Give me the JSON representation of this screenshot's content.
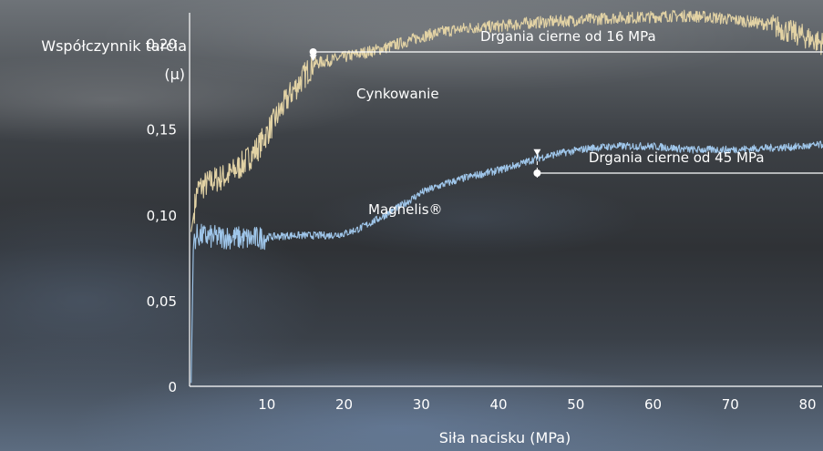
{
  "chart_data": {
    "type": "line",
    "xlabel": "Siła nacisku (MPa)",
    "ylabel_lines": [
      "Współczynnik tarcia",
      "(µ)"
    ],
    "xlim": [
      0,
      82
    ],
    "ylim": [
      0,
      0.22
    ],
    "xticks": [
      10,
      20,
      30,
      40,
      50,
      60,
      70,
      80
    ],
    "yticks": [
      0,
      0.05,
      0.1,
      0.15,
      0.2
    ],
    "ytick_labels": [
      "0",
      "0,05",
      "0,10",
      "0,15",
      "0,20"
    ],
    "series": [
      {
        "name": "Cynkowanie",
        "color": "#e2d2a4",
        "x": [
          0.2,
          1,
          3,
          5,
          7,
          9,
          11,
          13,
          15,
          16,
          18,
          20,
          22,
          25,
          28,
          30,
          33,
          36,
          40,
          44,
          48,
          52,
          55,
          58,
          62,
          65,
          68,
          70,
          72,
          75,
          77,
          79,
          82
        ],
        "y": [
          0.09,
          0.115,
          0.12,
          0.123,
          0.13,
          0.14,
          0.155,
          0.17,
          0.182,
          0.188,
          0.19,
          0.192,
          0.194,
          0.197,
          0.201,
          0.204,
          0.207,
          0.209,
          0.21,
          0.212,
          0.213,
          0.214,
          0.215,
          0.215,
          0.216,
          0.216,
          0.215,
          0.214,
          0.213,
          0.211,
          0.208,
          0.205,
          0.2
        ]
      },
      {
        "name": "Magnelis®",
        "color": "#9fc6ea",
        "x": [
          0.2,
          0.5,
          1,
          3,
          5,
          8,
          10,
          13,
          16,
          18,
          20,
          22,
          25,
          28,
          30,
          33,
          36,
          40,
          43,
          45,
          48,
          52,
          55,
          60,
          65,
          70,
          75,
          80,
          82
        ],
        "y": [
          0.002,
          0.085,
          0.088,
          0.087,
          0.087,
          0.086,
          0.087,
          0.088,
          0.088,
          0.088,
          0.089,
          0.092,
          0.099,
          0.107,
          0.113,
          0.118,
          0.122,
          0.126,
          0.13,
          0.133,
          0.136,
          0.139,
          0.14,
          0.14,
          0.138,
          0.138,
          0.139,
          0.14,
          0.141
        ]
      }
    ],
    "annotations": [
      {
        "text": "Drgania cierne od 16 MPa",
        "x": 16,
        "series": "Cynkowanie"
      },
      {
        "text": "Drgania cierne od 45 MPa",
        "x": 45,
        "series": "Magnelis®"
      }
    ]
  }
}
